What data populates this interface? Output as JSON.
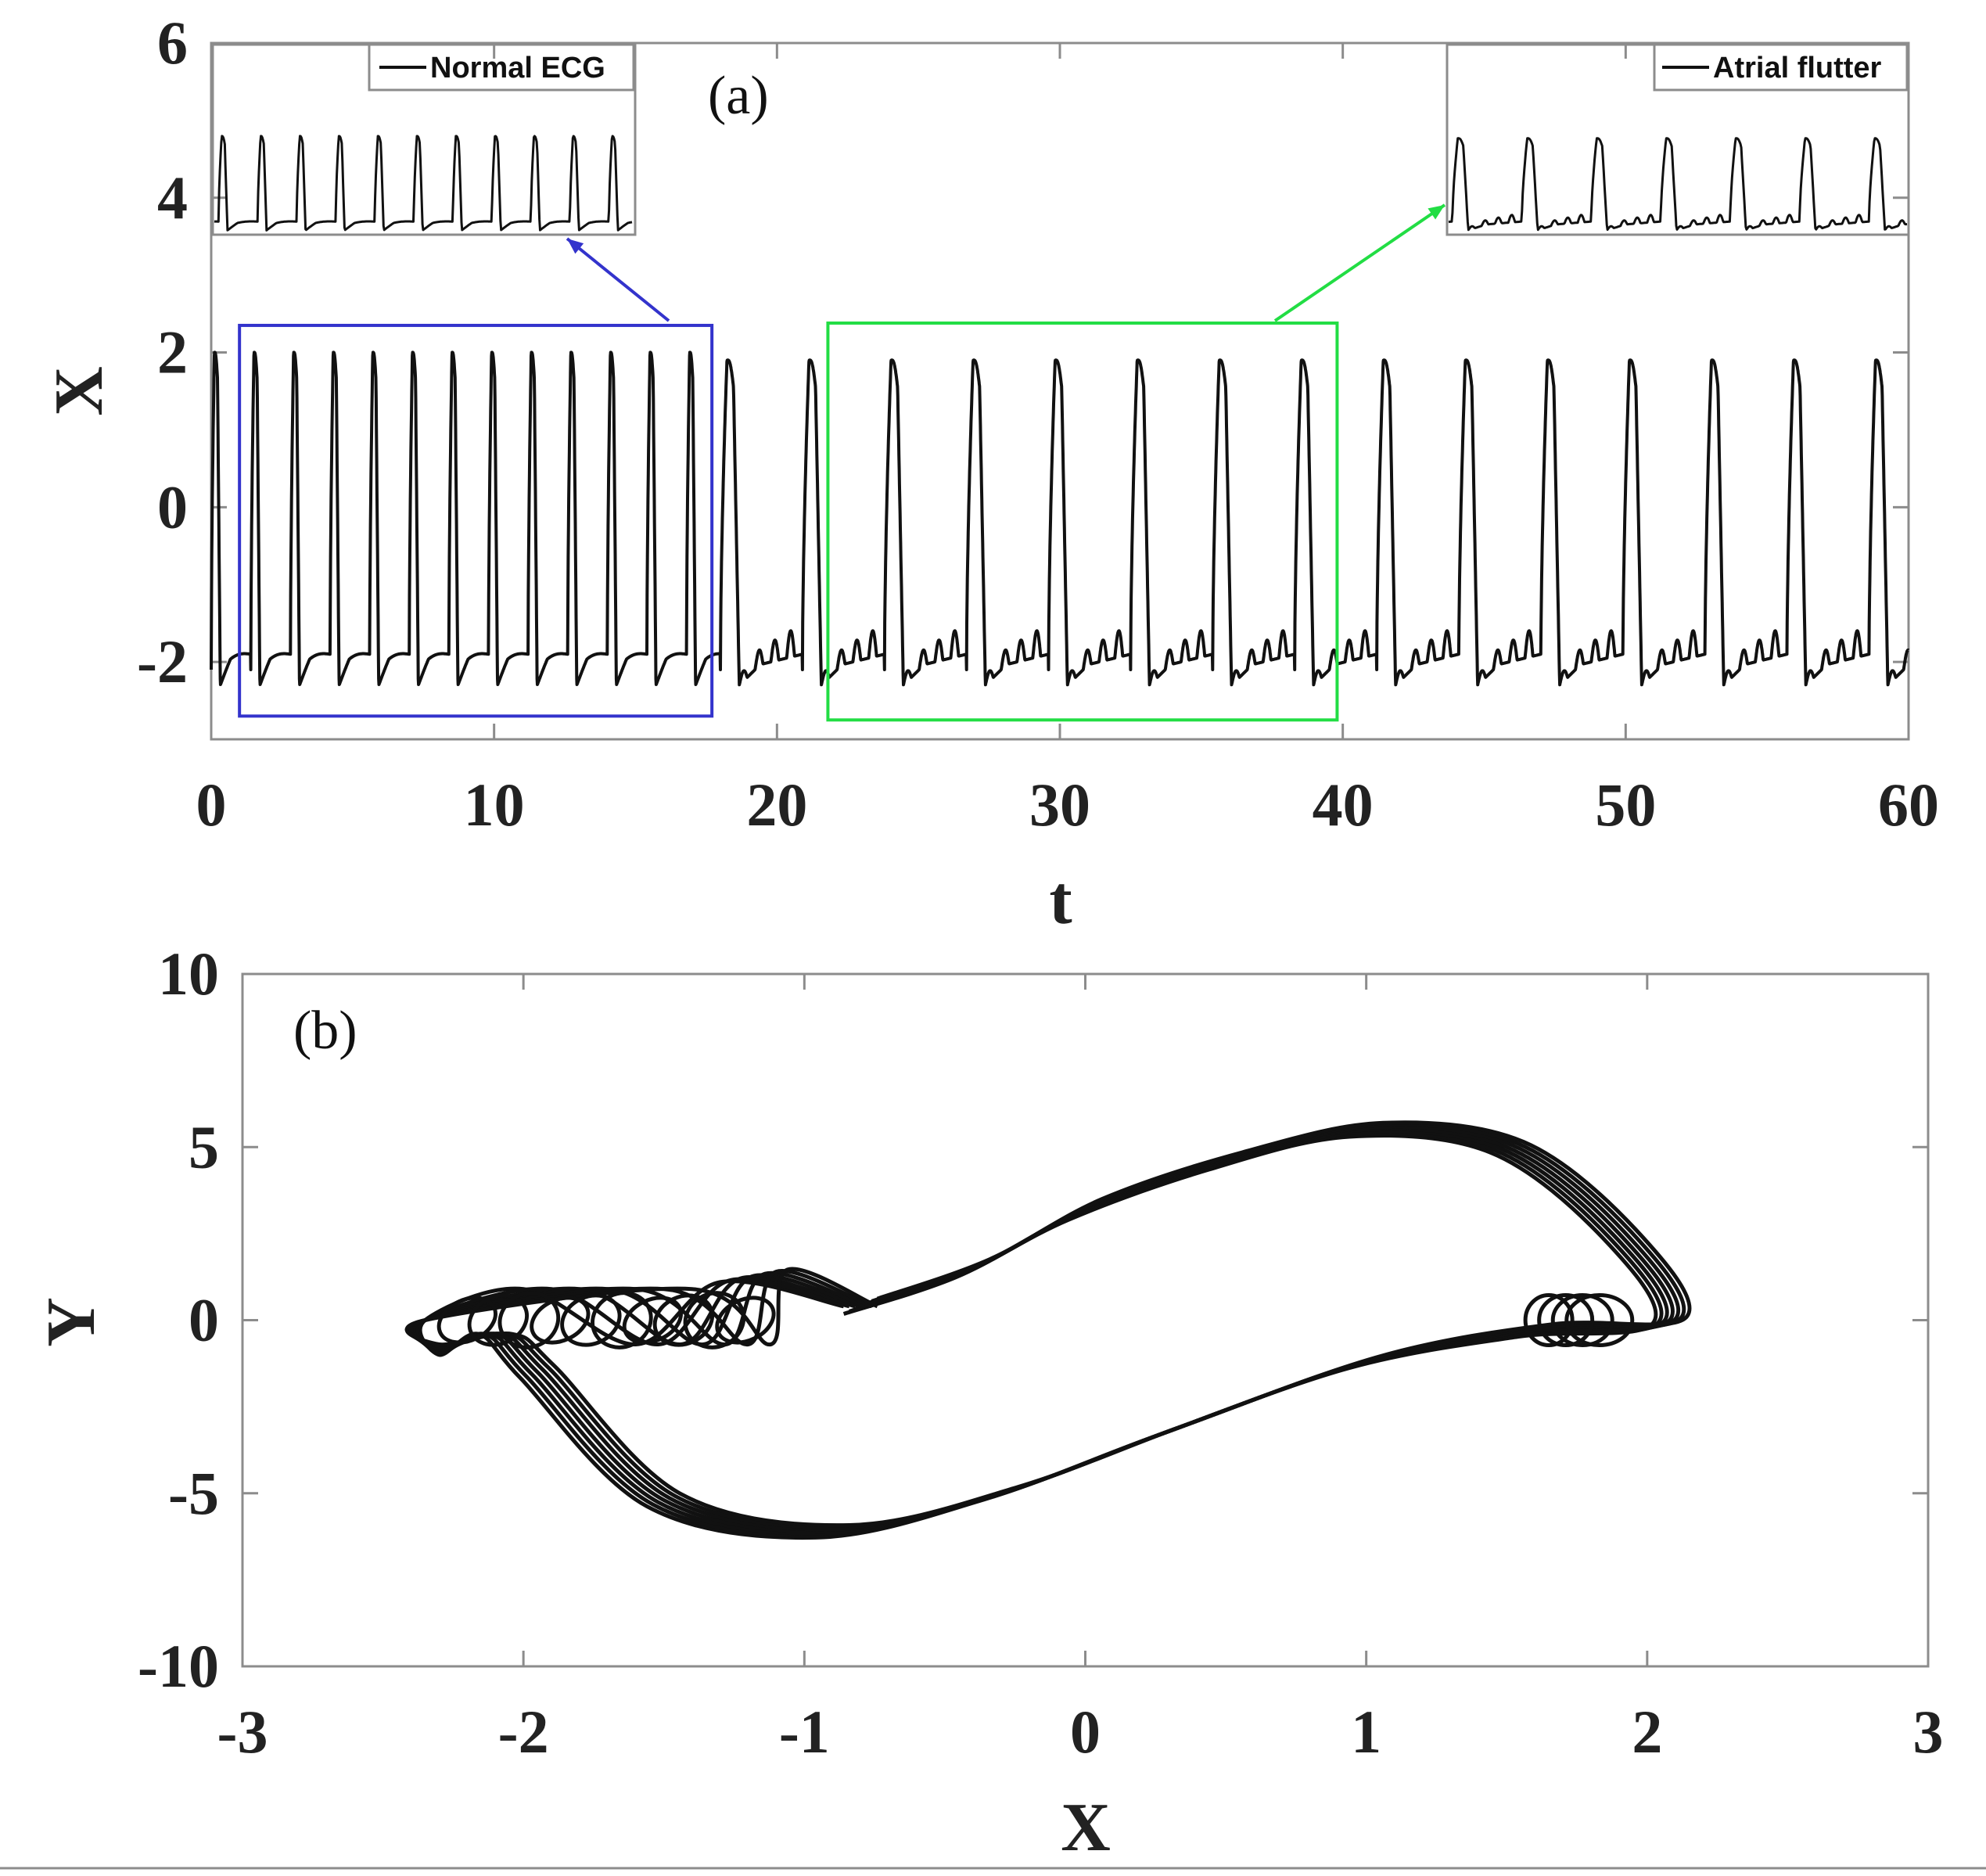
{
  "chart_data": [
    {
      "panel_label": "(a)",
      "type": "line",
      "xlabel": "t",
      "ylabel": "X",
      "xlim": [
        0,
        60
      ],
      "ylim": [
        -3,
        6
      ],
      "xticks": [
        0,
        10,
        20,
        30,
        40,
        50,
        60
      ],
      "yticks": [
        -2,
        0,
        2,
        4,
        6
      ],
      "tick_labels_x": [
        "0",
        "10",
        "20",
        "30",
        "40",
        "50",
        "60"
      ],
      "tick_labels_y": [
        "-2",
        "0",
        "2",
        "4",
        "6"
      ],
      "series": [
        {
          "color": "#111111",
          "segments": [
            {
              "t_start": 0,
              "t_end": 18,
              "period": 1.4,
              "peak": 2.0,
              "baseline": -2.1,
              "trough": -2.3
            },
            {
              "t_start": 18,
              "t_end": 60,
              "period": 2.9,
              "peak": 1.9,
              "baseline": -2.1,
              "trough": -2.3,
              "flutter_waves": 4
            }
          ]
        }
      ],
      "highlight_boxes": [
        {
          "t_range": [
            1,
            17.7
          ],
          "x_range": [
            -2.7,
            2.35
          ],
          "color": "#3333cc",
          "inset": "normal_ecg"
        },
        {
          "t_range": [
            21.8,
            39.8
          ],
          "x_range": [
            -2.75,
            2.38
          ],
          "color": "#22dd44",
          "inset": "atrial_flutter"
        }
      ],
      "insets": {
        "normal_ecg": {
          "legend": "Normal ECG",
          "arrow_color": "#3333cc"
        },
        "atrial_flutter": {
          "legend": "Atrial flutter",
          "arrow_color": "#22dd44"
        }
      }
    },
    {
      "panel_label": "(b)",
      "type": "line",
      "xlabel": "X",
      "ylabel": "Y",
      "xlim": [
        -3,
        3
      ],
      "ylim": [
        -10,
        10
      ],
      "xticks": [
        -3,
        -2,
        -1,
        0,
        1,
        2,
        3
      ],
      "yticks": [
        -10,
        -5,
        0,
        5,
        10
      ],
      "tick_labels_x": [
        "-3",
        "-2",
        "-1",
        "0",
        "1",
        "2",
        "3"
      ],
      "tick_labels_y": [
        "-10",
        "-5",
        "0",
        "5",
        "10"
      ],
      "series": [
        {
          "color": "#111111",
          "description_points": {
            "upper_branch": [
              [
                -0.8,
                0.4
              ],
              [
                -0.4,
                1.5
              ],
              [
                0,
                3.2
              ],
              [
                0.5,
                4.6
              ],
              [
                1.0,
                5.5
              ],
              [
                1.5,
                5.0
              ],
              [
                1.9,
                2.5
              ],
              [
                2.08,
                0
              ]
            ],
            "lower_branch": [
              [
                1.6,
                -0.3
              ],
              [
                1.0,
                -1.2
              ],
              [
                0.3,
                -3.2
              ],
              [
                -0.3,
                -5.0
              ],
              [
                -0.9,
                -6.1
              ],
              [
                -1.5,
                -5.2
              ],
              [
                -1.95,
                -1.5
              ]
            ],
            "left_loops_x": [
              -2.35,
              -1.05
            ],
            "right_loops_x": [
              1.5,
              2.08
            ]
          }
        }
      ]
    }
  ]
}
